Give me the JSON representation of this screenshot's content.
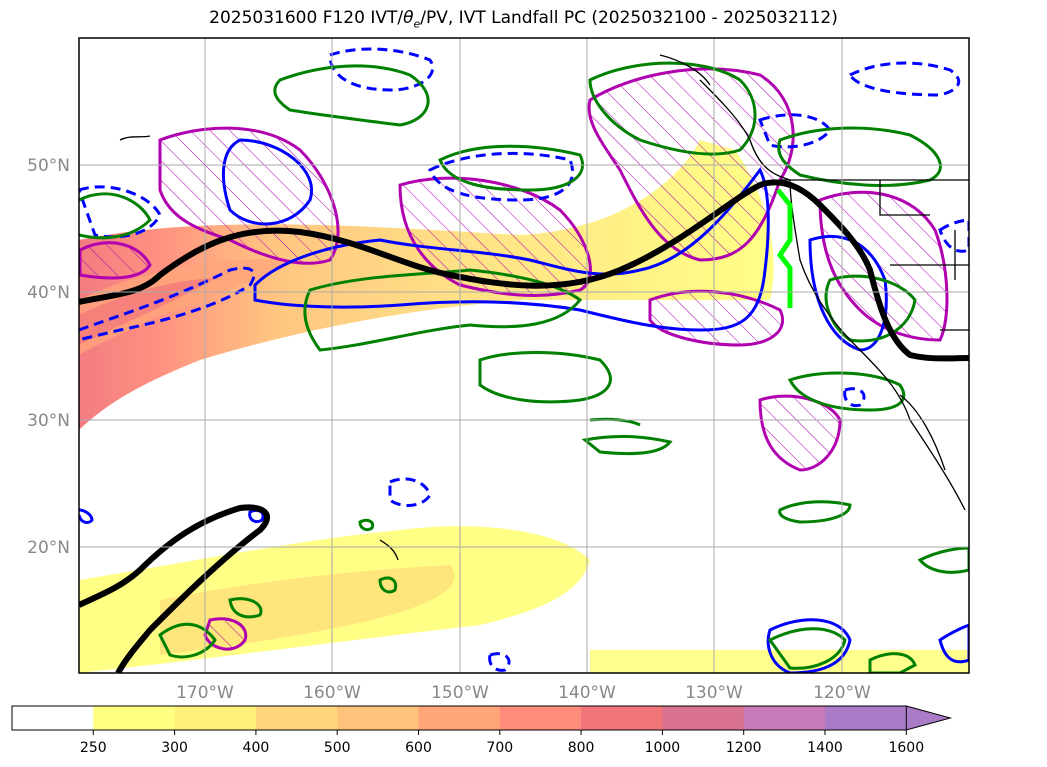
{
  "title": {
    "prefix": "2025031600 F120 IVT/",
    "theta": "θ",
    "sub": "e",
    "suffix": "/PV, IVT Landfall PC (2025032100 - 2025032112)"
  },
  "lat_labels": [
    "50°N",
    "40°N",
    "30°N",
    "20°N"
  ],
  "lon_labels": [
    "170°W",
    "160°W",
    "150°W",
    "140°W",
    "130°W",
    "120°W"
  ],
  "colorbar": {
    "ticks": [
      "250",
      "300",
      "400",
      "500",
      "600",
      "700",
      "800",
      "1000",
      "1200",
      "1400",
      "1600"
    ],
    "colors": [
      "#ffffff",
      "#ffff80",
      "#fff07a",
      "#ffd77a",
      "#ffc27a",
      "#ffa57a",
      "#ff8c7a",
      "#f2757a",
      "#d9728f",
      "#c87ab8",
      "#aa7cc8"
    ]
  },
  "legend_colors": {
    "jet": "#000000",
    "pv_positive": "#0000ff",
    "theta_hatch": "#b000b0",
    "green_contour": "#008000",
    "landfall": "#00ff00"
  }
}
